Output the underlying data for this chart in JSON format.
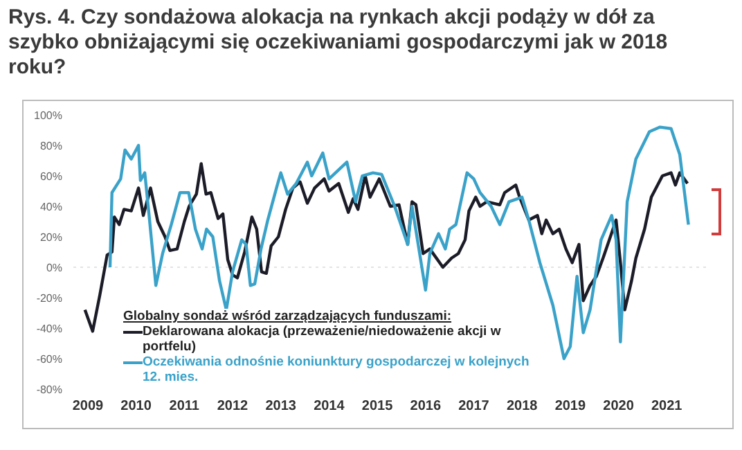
{
  "chart_data": {
    "type": "line",
    "title": "Rys. 4. Czy sondażowa alokacja na rynkach akcji podąży w dół za szybko obniżającymi się oczekiwaniami gospodarczymi jak w 2018 roku?",
    "legend_title": "Globalny sondaż wśród zarządzających funduszami:",
    "xlim": [
      2008.7,
      2021.9
    ],
    "xticks": [
      2009,
      2010,
      2011,
      2012,
      2013,
      2014,
      2015,
      2016,
      2017,
      2018,
      2019,
      2020,
      2021
    ],
    "ylim": [
      -80,
      100
    ],
    "yticks": [
      {
        "value": -80,
        "label": "-80%"
      },
      {
        "value": -60,
        "label": "-60%"
      },
      {
        "value": -40,
        "label": "-40%"
      },
      {
        "value": -20,
        "label": "-20%"
      },
      {
        "value": 0,
        "label": "0%"
      },
      {
        "value": 20,
        "label": "20%"
      },
      {
        "value": 40,
        "label": "40%"
      },
      {
        "value": 60,
        "label": "60%"
      },
      {
        "value": 80,
        "label": "80%"
      },
      {
        "value": 100,
        "label": "100%"
      }
    ],
    "grid": false,
    "legend": "bottom left",
    "marker": "none",
    "line_style": "solid",
    "ref_lines": [
      {
        "axis": "y",
        "value": 0,
        "color": "#e4e4e4",
        "line_style": "dotted"
      }
    ],
    "series": [
      {
        "name": "Deklarowana alokacja (przeważenie/niedoważenie akcji w portfelu)",
        "color": "#1c1c28",
        "x": [
          2008.94,
          2009.1,
          2009.25,
          2009.4,
          2009.5,
          2009.55,
          2009.65,
          2009.75,
          2009.9,
          2010.05,
          2010.15,
          2010.3,
          2010.45,
          2010.6,
          2010.7,
          2010.85,
          2011.0,
          2011.1,
          2011.25,
          2011.35,
          2011.45,
          2011.55,
          2011.7,
          2011.8,
          2011.9,
          2012.0,
          2012.1,
          2012.25,
          2012.4,
          2012.5,
          2012.6,
          2012.7,
          2012.8,
          2012.95,
          2013.1,
          2013.25,
          2013.4,
          2013.55,
          2013.7,
          2013.9,
          2014.0,
          2014.2,
          2014.4,
          2014.5,
          2014.6,
          2014.75,
          2014.85,
          2015.04,
          2015.27,
          2015.45,
          2015.63,
          2015.72,
          2015.8,
          2015.95,
          2016.09,
          2016.36,
          2016.54,
          2016.68,
          2016.82,
          2016.9,
          2017.04,
          2017.13,
          2017.27,
          2017.54,
          2017.64,
          2017.87,
          2017.95,
          2018.14,
          2018.32,
          2018.41,
          2018.5,
          2018.64,
          2018.77,
          2018.91,
          2019.04,
          2019.18,
          2019.27,
          2019.41,
          2019.54,
          2019.68,
          2019.81,
          2019.95,
          2020.04,
          2020.13,
          2020.27,
          2020.36,
          2020.54,
          2020.68,
          2020.91,
          2021.09,
          2021.18,
          2021.27,
          2021.43
        ],
        "values": [
          -28,
          -42,
          -18,
          8,
          10,
          33,
          28,
          38,
          37,
          52,
          34,
          52,
          30,
          20,
          11,
          12,
          30,
          40,
          48,
          68,
          48,
          49,
          32,
          35,
          5,
          -5,
          -7,
          10,
          33,
          25,
          -3,
          -4,
          14,
          20,
          38,
          52,
          56,
          42,
          52,
          58,
          50,
          55,
          36,
          45,
          38,
          60,
          46,
          58,
          40,
          41,
          15,
          43,
          41,
          9,
          12,
          0,
          6,
          9,
          18,
          37,
          46,
          40,
          43,
          41,
          49,
          54,
          46,
          31,
          34,
          22,
          31,
          22,
          25,
          12,
          3,
          15,
          -22,
          -12,
          -6,
          6,
          18,
          31,
          3,
          -28,
          -9,
          6,
          25,
          46,
          60,
          62,
          54,
          62,
          55
        ]
      },
      {
        "name": "Oczekiwania odnośnie koniunktury gospodarczej w kolejnych 12. mies.",
        "color": "#3aa2c9",
        "x": [
          2009.46,
          2009.5,
          2009.68,
          2009.77,
          2009.9,
          2010.05,
          2010.09,
          2010.18,
          2010.27,
          2010.41,
          2010.55,
          2010.73,
          2010.91,
          2011.09,
          2011.23,
          2011.37,
          2011.46,
          2011.59,
          2011.73,
          2011.87,
          2012.0,
          2012.19,
          2012.28,
          2012.37,
          2012.46,
          2012.59,
          2012.73,
          2012.91,
          2013.0,
          2013.14,
          2013.32,
          2013.55,
          2013.64,
          2013.87,
          2014.0,
          2014.37,
          2014.55,
          2014.69,
          2014.91,
          2015.09,
          2015.36,
          2015.63,
          2015.72,
          2016.0,
          2016.09,
          2016.27,
          2016.41,
          2016.5,
          2016.63,
          2016.86,
          2017.0,
          2017.13,
          2017.36,
          2017.54,
          2017.73,
          2018.0,
          2018.14,
          2018.37,
          2018.64,
          2018.87,
          2019.0,
          2019.14,
          2019.27,
          2019.41,
          2019.64,
          2019.86,
          2019.95,
          2020.04,
          2020.18,
          2020.36,
          2020.64,
          2020.86,
          2021.09,
          2021.27,
          2021.45
        ],
        "values": [
          0,
          49,
          58,
          77,
          71,
          80,
          57,
          62,
          34,
          -12,
          9,
          28,
          49,
          49,
          25,
          12,
          25,
          20,
          -9,
          -28,
          -3,
          18,
          15,
          -12,
          -11,
          12,
          31,
          52,
          62,
          48,
          55,
          69,
          60,
          75,
          58,
          69,
          43,
          60,
          62,
          61,
          40,
          15,
          40,
          -15,
          9,
          22,
          12,
          25,
          28,
          62,
          58,
          49,
          40,
          28,
          43,
          46,
          31,
          3,
          -25,
          -60,
          -52,
          -6,
          -43,
          -28,
          18,
          34,
          18,
          -49,
          43,
          71,
          89,
          92,
          91,
          74,
          28
        ]
      }
    ]
  }
}
